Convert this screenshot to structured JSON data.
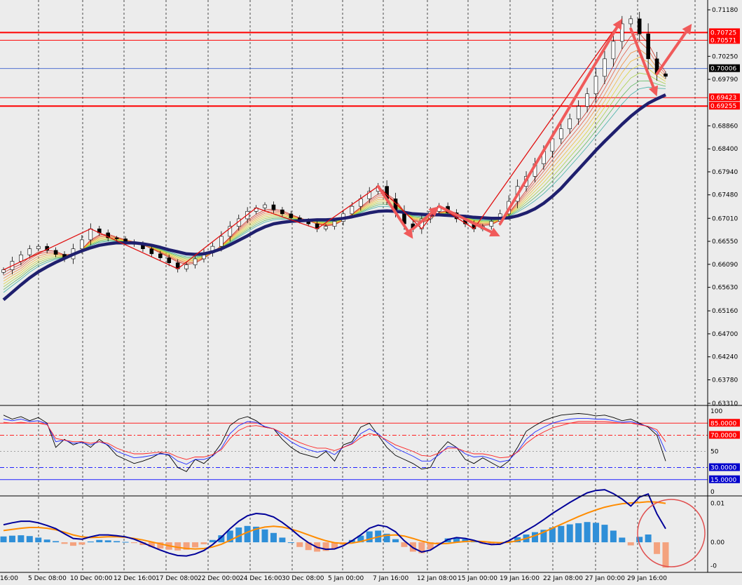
{
  "colors": {
    "background": "#ececec",
    "grid": "#222222",
    "hline": "#ff0000",
    "bid_line": "#3a5fcd",
    "slow_ma": "#1f1f6e",
    "arrow": "#f05a5a",
    "zigzag": "#e01010",
    "rsi_fast": "#000000",
    "rsi_mid": "#1e2bff",
    "rsi_slow": "#ff2020",
    "hist_pos": "#2f8fd8",
    "hist_neg": "#f4a27e",
    "signal": "#ff8c00",
    "macd": "#000099",
    "circle": "#e05050"
  },
  "chart_data": [
    {
      "type": "candlestick",
      "title": "",
      "x_ticks": [
        "16:00",
        "5 Dec 08:00",
        "10 Dec 00:00",
        "12 Dec 16:00",
        "17 Dec 08:00",
        "22 Dec 00:00",
        "24 Dec 16:00",
        "30 Dec 08:00",
        "5 Jan 00:00",
        "7 Jan 16:00",
        "12 Jan 08:00",
        "15 Jan 00:00",
        "19 Jan 16:00",
        "22 Jan 08:00",
        "27 Jan 00:00",
        "29 Jan 16:00"
      ],
      "y_ticks": [
        "0.71180",
        "0.70250",
        "0.69790",
        "0.68860",
        "0.68400",
        "0.67940",
        "0.67480",
        "0.67010",
        "0.66550",
        "0.66090",
        "0.65630",
        "0.65160",
        "0.64700",
        "0.64240",
        "0.63780",
        "0.63310"
      ],
      "ylim": [
        0.6331,
        0.7118
      ],
      "price_levels": [
        "0.70725",
        "0.70571",
        "0.69423",
        "0.69255"
      ],
      "current_price": "0.70006",
      "close": [
        0.6598,
        0.6615,
        0.6628,
        0.664,
        0.6645,
        0.6637,
        0.6629,
        0.662,
        0.664,
        0.6658,
        0.668,
        0.6672,
        0.6662,
        0.666,
        0.6654,
        0.6649,
        0.664,
        0.663,
        0.6622,
        0.6612,
        0.66,
        0.6608,
        0.662,
        0.6632,
        0.6645,
        0.6665,
        0.6685,
        0.67,
        0.6715,
        0.6722,
        0.6728,
        0.6718,
        0.671,
        0.6702,
        0.6696,
        0.669,
        0.668,
        0.6685,
        0.6695,
        0.671,
        0.6725,
        0.674,
        0.6755,
        0.6765,
        0.674,
        0.6715,
        0.669,
        0.668,
        0.67,
        0.6715,
        0.6725,
        0.6712,
        0.67,
        0.669,
        0.668,
        0.6685,
        0.6695,
        0.671,
        0.6735,
        0.6765,
        0.6785,
        0.681,
        0.6835,
        0.686,
        0.688,
        0.69,
        0.6925,
        0.695,
        0.6985,
        0.702,
        0.7055,
        0.709,
        0.71,
        0.707,
        0.702,
        0.699,
        0.6985
      ],
      "slow_ma_value": [
        0.6538,
        0.6553,
        0.6568,
        0.6582,
        0.6594,
        0.6604,
        0.6613,
        0.6621,
        0.6629,
        0.6636,
        0.6642,
        0.6647,
        0.665,
        0.6652,
        0.6652,
        0.6652,
        0.665,
        0.6647,
        0.6643,
        0.6638,
        0.6634,
        0.663,
        0.6629,
        0.663,
        0.6634,
        0.664,
        0.6648,
        0.6657,
        0.6666,
        0.6676,
        0.6684,
        0.669,
        0.6693,
        0.6695,
        0.6696,
        0.6697,
        0.6698,
        0.6698,
        0.6699,
        0.6701,
        0.6704,
        0.6708,
        0.6712,
        0.6715,
        0.6716,
        0.6715,
        0.6713,
        0.671,
        0.6709,
        0.6708,
        0.6708,
        0.6707,
        0.6706,
        0.6705,
        0.6703,
        0.6702,
        0.6701,
        0.6701,
        0.6702,
        0.6706,
        0.6712,
        0.672,
        0.6731,
        0.6745,
        0.6761,
        0.678,
        0.6799,
        0.6818,
        0.6837,
        0.6855,
        0.6872,
        0.6889,
        0.6905,
        0.6919,
        0.6931,
        0.694,
        0.6948
      ]
    },
    {
      "type": "line",
      "title": "",
      "y_ticks": [
        "100",
        "50",
        "0"
      ],
      "ylim": [
        0,
        100
      ],
      "levels": [
        {
          "value": 85,
          "label": "85.0000"
        },
        {
          "value": 70,
          "label": "70.0000"
        },
        {
          "value": 30,
          "label": "30.0000"
        },
        {
          "value": 15,
          "label": "15.0000"
        }
      ],
      "series": [
        {
          "values": [
            95,
            90,
            93,
            88,
            92,
            85,
            55,
            65,
            58,
            62,
            55,
            65,
            57,
            45,
            40,
            35,
            38,
            42,
            48,
            45,
            30,
            25,
            40,
            35,
            45,
            60,
            82,
            90,
            93,
            88,
            80,
            78,
            65,
            55,
            48,
            45,
            42,
            50,
            38,
            58,
            62,
            80,
            85,
            70,
            55,
            45,
            40,
            35,
            28,
            30,
            50,
            62,
            55,
            40,
            35,
            42,
            36,
            30,
            38,
            55,
            75,
            82,
            88,
            92,
            95,
            96,
            97,
            96,
            94,
            95,
            92,
            88,
            90,
            85,
            80,
            70,
            38
          ]
        },
        {
          "values": [
            90,
            88,
            90,
            87,
            88,
            84,
            62,
            64,
            60,
            61,
            58,
            62,
            58,
            50,
            46,
            42,
            43,
            45,
            47,
            46,
            38,
            34,
            40,
            40,
            44,
            54,
            72,
            82,
            87,
            86,
            81,
            78,
            70,
            62,
            56,
            52,
            49,
            51,
            46,
            55,
            60,
            72,
            78,
            72,
            62,
            54,
            49,
            44,
            38,
            38,
            46,
            56,
            55,
            47,
            43,
            44,
            41,
            37,
            39,
            50,
            65,
            74,
            80,
            85,
            88,
            90,
            91,
            91,
            90,
            90,
            88,
            86,
            87,
            84,
            81,
            74,
            50
          ]
        },
        {
          "values": [
            86,
            85,
            86,
            85,
            85,
            83,
            66,
            64,
            62,
            62,
            60,
            62,
            60,
            54,
            50,
            47,
            47,
            48,
            49,
            48,
            43,
            40,
            43,
            43,
            46,
            52,
            66,
            76,
            81,
            82,
            80,
            78,
            73,
            66,
            61,
            57,
            54,
            54,
            51,
            55,
            59,
            67,
            72,
            70,
            64,
            58,
            54,
            50,
            45,
            44,
            48,
            54,
            54,
            50,
            47,
            47,
            45,
            42,
            43,
            49,
            60,
            68,
            74,
            79,
            82,
            85,
            87,
            87,
            87,
            87,
            86,
            85,
            85,
            83,
            81,
            77,
            62
          ]
        }
      ]
    },
    {
      "type": "bar",
      "title": "",
      "y_ticks": [
        "0.01",
        "0.00",
        "-0"
      ],
      "ylim": [
        -0.007,
        0.011
      ],
      "histogram": [
        0.0015,
        0.0017,
        0.0018,
        0.0016,
        0.0012,
        0.0007,
        0.0003,
        -0.0004,
        -0.0009,
        -0.0006,
        0.0002,
        0.0006,
        0.0005,
        0.0003,
        0.0001,
        -0.0002,
        -0.0007,
        -0.0012,
        -0.0016,
        -0.0019,
        -0.0021,
        -0.0019,
        -0.0013,
        -0.0005,
        0.0006,
        0.0018,
        0.003,
        0.0038,
        0.0042,
        0.004,
        0.0033,
        0.0024,
        0.0012,
        0.0,
        -0.0012,
        -0.002,
        -0.0024,
        -0.0022,
        -0.0016,
        -0.0006,
        0.0006,
        0.0017,
        0.0028,
        0.003,
        0.0022,
        0.0008,
        -0.0012,
        -0.0024,
        -0.0028,
        -0.0018,
        -0.0002,
        0.001,
        0.0012,
        0.0008,
        0.0002,
        -0.0004,
        -0.0006,
        -0.0004,
        0.0004,
        0.0013,
        0.002,
        0.0026,
        0.0032,
        0.0038,
        0.0042,
        0.0046,
        0.0049,
        0.0052,
        0.005,
        0.0045,
        0.003,
        0.0012,
        -0.0008,
        0.0014,
        0.002,
        -0.003,
        -0.0065
      ],
      "series": [
        {
          "name": "signal",
          "values": [
            0.003,
            0.0033,
            0.0036,
            0.0038,
            0.0038,
            0.0036,
            0.0032,
            0.0026,
            0.0019,
            0.0014,
            0.0012,
            0.0013,
            0.0014,
            0.0014,
            0.0013,
            0.001,
            0.0006,
            0.0001,
            -0.0004,
            -0.0009,
            -0.0013,
            -0.0016,
            -0.0017,
            -0.0016,
            -0.0012,
            -0.0005,
            0.0005,
            0.0016,
            0.0026,
            0.0034,
            0.0039,
            0.0041,
            0.0039,
            0.0034,
            0.0027,
            0.0019,
            0.0011,
            0.0004,
            -0.0001,
            -0.0003,
            -0.0002,
            0.0002,
            0.0008,
            0.0014,
            0.0018,
            0.0019,
            0.0016,
            0.001,
            0.0003,
            -0.0002,
            -0.0004,
            -0.0003,
            0.0,
            0.0002,
            0.0003,
            0.0002,
            0.0,
            -0.0001,
            0.0,
            0.0004,
            0.001,
            0.0017,
            0.0026,
            0.0036,
            0.0046,
            0.0056,
            0.0066,
            0.0075,
            0.0083,
            0.009,
            0.0095,
            0.0099,
            0.0101,
            0.0102,
            0.0104,
            0.0103,
            0.01
          ]
        },
        {
          "name": "macd",
          "values": [
            0.0045,
            0.005,
            0.0054,
            0.0054,
            0.005,
            0.0043,
            0.0035,
            0.0022,
            0.001,
            0.0008,
            0.0014,
            0.0019,
            0.0019,
            0.0017,
            0.0014,
            0.0008,
            -0.0001,
            -0.0011,
            -0.002,
            -0.0028,
            -0.0034,
            -0.0035,
            -0.003,
            -0.0021,
            -0.0006,
            0.0013,
            0.0035,
            0.0054,
            0.0068,
            0.0074,
            0.0072,
            0.0065,
            0.0051,
            0.0034,
            0.0015,
            -0.0001,
            -0.0013,
            -0.0018,
            -0.0017,
            -0.0009,
            0.0004,
            0.0019,
            0.0036,
            0.0044,
            0.004,
            0.0027,
            0.0004,
            -0.0014,
            -0.0025,
            -0.002,
            -0.0006,
            0.0007,
            0.0012,
            0.001,
            0.0005,
            -0.0002,
            -0.0006,
            -0.0005,
            0.0004,
            0.0017,
            0.003,
            0.0043,
            0.0058,
            0.0074,
            0.0088,
            0.0102,
            0.0115,
            0.0127,
            0.0133,
            0.0135,
            0.0125,
            0.0111,
            0.0093,
            0.0116,
            0.0124,
            0.0073,
            0.0035
          ]
        }
      ]
    }
  ]
}
